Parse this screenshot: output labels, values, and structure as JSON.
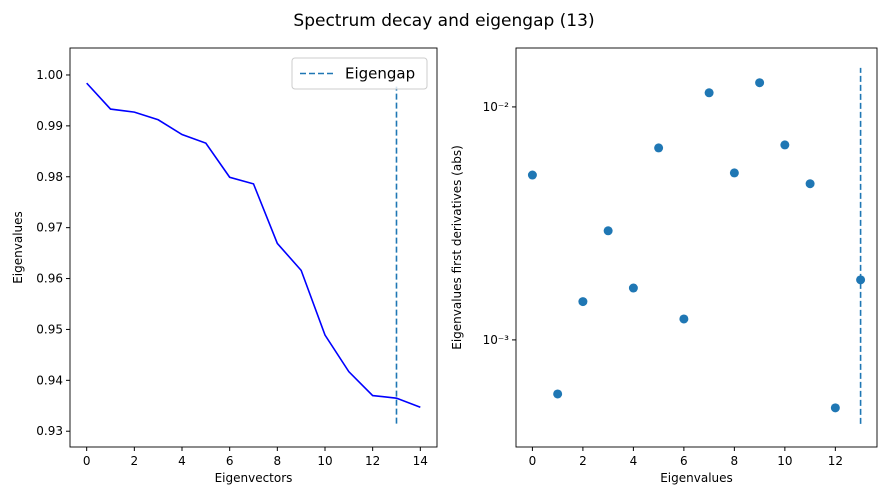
{
  "title": "Spectrum decay and eigengap (13)",
  "chart_data": [
    {
      "type": "line",
      "xlabel": "Eigenvectors",
      "ylabel": "Eigenvalues",
      "x": [
        0,
        1,
        2,
        3,
        4,
        5,
        6,
        7,
        8,
        9,
        10,
        11,
        12,
        13,
        14
      ],
      "values": [
        0.9984,
        0.9933,
        0.9927,
        0.9912,
        0.9883,
        0.9866,
        0.9799,
        0.9786,
        0.9669,
        0.9616,
        0.9489,
        0.9417,
        0.937,
        0.9365,
        0.9347
      ],
      "color": "#0000ff",
      "vline": {
        "name": "Eigengap",
        "x": 13,
        "ymin": 0.9315,
        "ymax": 0.9977,
        "color": "#1f77b4"
      },
      "legend": "upper right",
      "xlim": [
        -0.7,
        14.7
      ],
      "ylim": [
        0.9269,
        1.0053
      ],
      "xticks": [
        0,
        2,
        4,
        6,
        8,
        10,
        12,
        14
      ],
      "yticks": [
        {
          "value": 0.93,
          "label": "0.93"
        },
        {
          "value": 0.94,
          "label": "0.94"
        },
        {
          "value": 0.95,
          "label": "0.95"
        },
        {
          "value": 0.96,
          "label": "0.96"
        },
        {
          "value": 0.97,
          "label": "0.97"
        },
        {
          "value": 0.98,
          "label": "0.98"
        },
        {
          "value": 0.99,
          "label": "0.99"
        },
        {
          "value": 1.0,
          "label": "1.00"
        }
      ]
    },
    {
      "type": "scatter",
      "xlabel": "Eigenvalues",
      "ylabel": "Eigenvalues first derivatives (abs)",
      "x": [
        0,
        1,
        2,
        3,
        4,
        5,
        6,
        7,
        8,
        9,
        10,
        11,
        12,
        13
      ],
      "values": [
        0.0051,
        0.000586,
        0.00146,
        0.00294,
        0.00167,
        0.00667,
        0.00123,
        0.0115,
        0.00521,
        0.0127,
        0.00687,
        0.00468,
        0.000511,
        0.00181
      ],
      "color": "#1f77b4",
      "vline": {
        "x": 13,
        "ymin": 0.000436,
        "ymax": 0.0147,
        "color": "#1f77b4"
      },
      "log_y": true,
      "xlim": [
        -0.65,
        13.65
      ],
      "ylim": [
        0.000347,
        0.0179
      ],
      "xticks": [
        0,
        2,
        4,
        6,
        8,
        10,
        12
      ],
      "yticks": [
        {
          "value": 0.001,
          "label": "10⁻³"
        },
        {
          "value": 0.01,
          "label": "10⁻²"
        }
      ]
    }
  ]
}
